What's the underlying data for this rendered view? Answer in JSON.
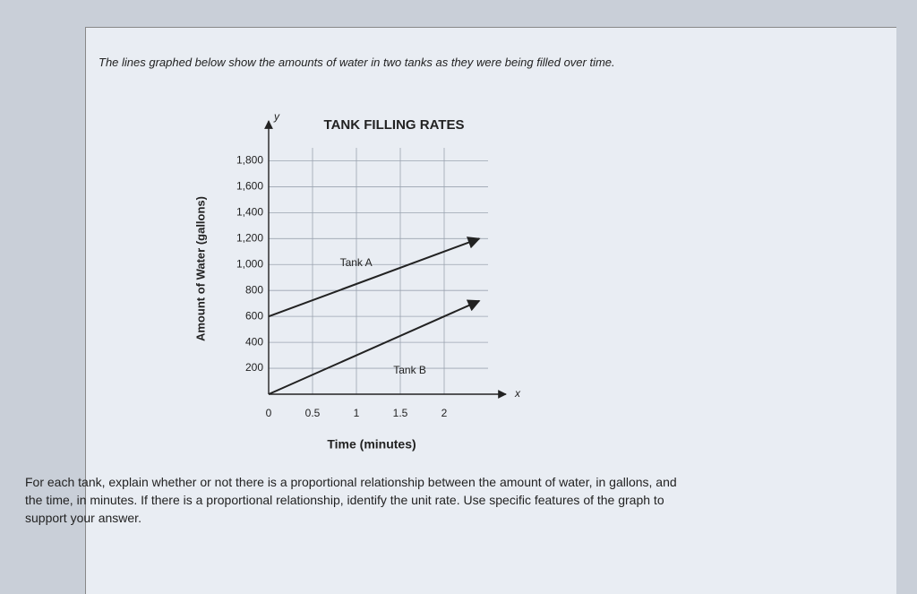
{
  "intro": "The lines graphed below show the amounts of water in two tanks as they were being filled over time.",
  "question": "For each tank, explain whether or not there is a proportional relationship between the amount of water, in gallons, and the time, in minutes. If there is a proportional relationship, identify the unit rate. Use specific features of the graph to support your answer.",
  "chart_data": {
    "type": "line",
    "title": "TANK FILLING RATES",
    "x_label": "Time (minutes)",
    "y_label": "Amount of Water (gallons)",
    "x_axis_symbol": "x",
    "y_axis_symbol": "y",
    "x": [
      0,
      2.4
    ],
    "series": [
      {
        "name": "Tank A",
        "color": "#222222",
        "values": [
          600,
          1200
        ]
      },
      {
        "name": "Tank B",
        "color": "#222222",
        "values": [
          0,
          720
        ]
      }
    ],
    "xlim": [
      0,
      2.5
    ],
    "ylim": [
      0,
      1900
    ],
    "xticks": [
      0,
      0.5,
      1,
      1.5,
      2
    ],
    "yticks": [
      200,
      400,
      600,
      800,
      {
        "value": 1000,
        "label": "1,000"
      },
      {
        "value": 1200,
        "label": "1,200"
      },
      {
        "value": 1400,
        "label": "1,400"
      },
      {
        "value": 1600,
        "label": "1,600"
      },
      {
        "value": 1800,
        "label": "1,800"
      }
    ],
    "grid": true
  }
}
